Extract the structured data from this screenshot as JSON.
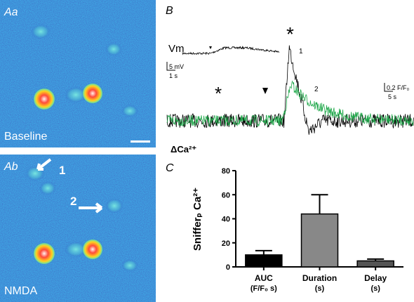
{
  "panel_a": {
    "top_label": "Aa",
    "top_caption": "Baseline",
    "bottom_label": "Ab",
    "bottom_caption": "NMDA",
    "arrow_labels": [
      "1",
      "2"
    ]
  },
  "panel_b": {
    "label": "B",
    "vm_label": "Vm",
    "vm_scale_y": "5 mV",
    "vm_scale_x": "1 s",
    "ca_label": "ΔCa²⁺",
    "ca_scale_y": "0.2 F/F₀",
    "ca_scale_x": "5 s",
    "markers": [
      "*",
      "*"
    ],
    "trace_labels": [
      "1",
      "2"
    ]
  },
  "chart_data": {
    "type": "bar",
    "panel_label": "C",
    "ylabel": "Snifferₚ Ca²⁺",
    "categories": [
      "AUC",
      "Duration",
      "Delay"
    ],
    "category_units": [
      "(F/F₀ s)",
      "(s)",
      "(s)"
    ],
    "values": [
      10,
      44,
      5
    ],
    "errors": [
      3.5,
      16,
      1.5
    ],
    "colors": [
      "#000000",
      "#888888",
      "#555555"
    ],
    "ylim": [
      0,
      80
    ],
    "yticks": [
      0,
      20,
      40,
      60,
      80
    ]
  }
}
